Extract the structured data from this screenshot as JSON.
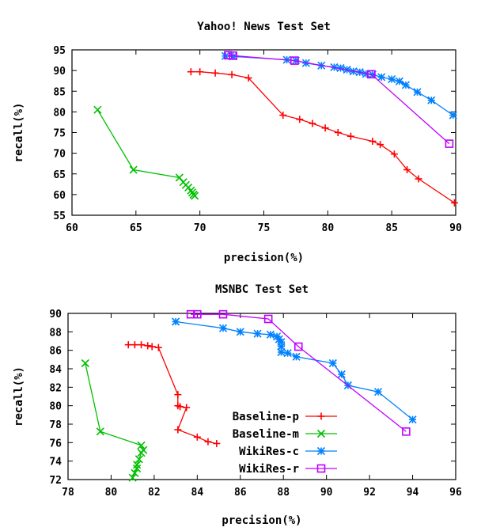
{
  "chart_data": [
    {
      "type": "line",
      "title": "Yahoo! News Test Set",
      "xlabel": "precision(%)",
      "ylabel": "recall(%)",
      "xlim": [
        60,
        90
      ],
      "ylim": [
        55,
        95
      ],
      "xticks": [
        60,
        65,
        70,
        75,
        80,
        85,
        90
      ],
      "yticks": [
        55,
        60,
        65,
        70,
        75,
        80,
        85,
        90,
        95
      ],
      "legend": "none",
      "series": [
        {
          "name": "Baseline-p",
          "color": "#ff0000",
          "marker": "plus",
          "points": [
            [
              69.3,
              89.7
            ],
            [
              70.0,
              89.7
            ],
            [
              71.2,
              89.4
            ],
            [
              72.5,
              89.0
            ],
            [
              73.8,
              88.2
            ],
            [
              76.5,
              79.2
            ],
            [
              77.8,
              78.2
            ],
            [
              78.8,
              77.2
            ],
            [
              79.8,
              76.1
            ],
            [
              80.8,
              75.0
            ],
            [
              81.8,
              74.1
            ],
            [
              83.5,
              72.9
            ],
            [
              84.1,
              72.1
            ],
            [
              85.2,
              69.8
            ],
            [
              86.2,
              66.0
            ],
            [
              87.1,
              63.8
            ],
            [
              89.9,
              58.0
            ]
          ]
        },
        {
          "name": "Baseline-m",
          "color": "#00c000",
          "marker": "x",
          "points": [
            [
              62.0,
              80.5
            ],
            [
              64.8,
              66.0
            ],
            [
              68.4,
              64.1
            ],
            [
              68.7,
              63.0
            ],
            [
              68.9,
              62.3
            ],
            [
              69.1,
              61.7
            ],
            [
              69.3,
              61.0
            ],
            [
              69.4,
              60.5
            ],
            [
              69.5,
              60.0
            ],
            [
              69.6,
              59.7
            ]
          ]
        },
        {
          "name": "WikiRes-c",
          "color": "#0080ff",
          "marker": "star",
          "points": [
            [
              72.0,
              93.5
            ],
            [
              72.6,
              93.4
            ],
            [
              76.8,
              92.6
            ],
            [
              77.5,
              92.4
            ],
            [
              78.3,
              91.8
            ],
            [
              79.5,
              91.2
            ],
            [
              80.5,
              90.8
            ],
            [
              81.0,
              90.6
            ],
            [
              81.5,
              90.2
            ],
            [
              82.0,
              89.8
            ],
            [
              82.5,
              89.6
            ],
            [
              83.0,
              89.2
            ],
            [
              83.5,
              89.0
            ],
            [
              84.2,
              88.4
            ],
            [
              85.0,
              87.9
            ],
            [
              85.6,
              87.4
            ],
            [
              86.1,
              86.5
            ],
            [
              87.0,
              84.8
            ],
            [
              88.1,
              82.8
            ],
            [
              89.8,
              79.2
            ]
          ]
        },
        {
          "name": "WikiRes-r",
          "color": "#c000ff",
          "marker": "square",
          "points": [
            [
              72.2,
              93.7
            ],
            [
              72.6,
              93.6
            ],
            [
              77.4,
              92.4
            ],
            [
              83.4,
              89.1
            ],
            [
              89.5,
              72.3
            ]
          ]
        }
      ]
    },
    {
      "type": "line",
      "title": "MSNBC Test Set",
      "xlabel": "precision(%)",
      "ylabel": "recall(%)",
      "xlim": [
        78,
        96
      ],
      "ylim": [
        72,
        90
      ],
      "xticks": [
        78,
        80,
        82,
        84,
        86,
        88,
        90,
        92,
        94,
        96
      ],
      "yticks": [
        72,
        74,
        76,
        78,
        80,
        82,
        84,
        86,
        88,
        90
      ],
      "legend": "inside, lower-left of center",
      "series": [
        {
          "name": "Baseline-p",
          "color": "#ff0000",
          "marker": "plus",
          "points": [
            [
              80.8,
              86.6
            ],
            [
              81.1,
              86.6
            ],
            [
              81.4,
              86.6
            ],
            [
              81.7,
              86.5
            ],
            [
              81.9,
              86.4
            ],
            [
              82.2,
              86.3
            ],
            [
              83.1,
              81.2
            ],
            [
              83.1,
              80.0
            ],
            [
              83.2,
              79.9
            ],
            [
              83.5,
              79.8
            ],
            [
              83.1,
              77.4
            ],
            [
              84.0,
              76.6
            ],
            [
              84.5,
              76.1
            ],
            [
              84.9,
              75.9
            ]
          ]
        },
        {
          "name": "Baseline-m",
          "color": "#00c000",
          "marker": "x",
          "points": [
            [
              78.8,
              84.6
            ],
            [
              79.5,
              77.2
            ],
            [
              81.4,
              75.7
            ],
            [
              81.5,
              75.2
            ],
            [
              81.4,
              74.9
            ],
            [
              81.3,
              74.2
            ],
            [
              81.2,
              73.6
            ],
            [
              81.2,
              73.2
            ],
            [
              81.1,
              72.7
            ],
            [
              81.0,
              72.2
            ]
          ]
        },
        {
          "name": "WikiRes-c",
          "color": "#0080ff",
          "marker": "star",
          "points": [
            [
              83.0,
              89.1
            ],
            [
              85.2,
              88.4
            ],
            [
              86.0,
              88.0
            ],
            [
              86.8,
              87.8
            ],
            [
              87.4,
              87.7
            ],
            [
              87.7,
              87.5
            ],
            [
              87.8,
              87.2
            ],
            [
              87.9,
              86.9
            ],
            [
              87.9,
              86.4
            ],
            [
              87.9,
              85.8
            ],
            [
              88.2,
              85.7
            ],
            [
              88.6,
              85.3
            ],
            [
              90.3,
              84.6
            ],
            [
              90.7,
              83.4
            ],
            [
              91.0,
              82.2
            ],
            [
              92.4,
              81.5
            ],
            [
              94.0,
              78.5
            ]
          ]
        },
        {
          "name": "WikiRes-r",
          "color": "#c000ff",
          "marker": "square",
          "points": [
            [
              83.7,
              89.9
            ],
            [
              84.0,
              89.9
            ],
            [
              85.2,
              89.9
            ],
            [
              87.3,
              89.4
            ],
            [
              88.7,
              86.4
            ],
            [
              93.7,
              77.2
            ]
          ]
        }
      ]
    }
  ]
}
